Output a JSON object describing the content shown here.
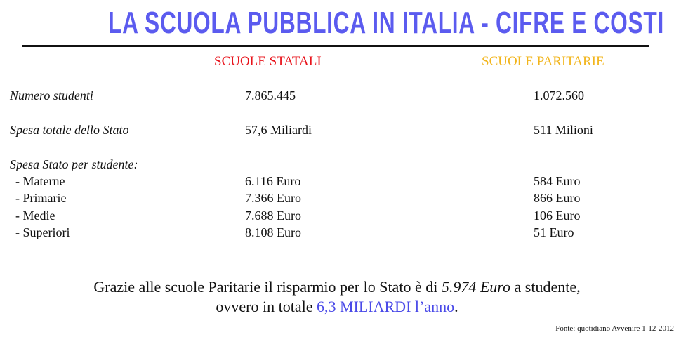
{
  "title": "LA SCUOLA PUBBLICA IN ITALIA  -  CIFRE E COSTI",
  "colors": {
    "title": "#5b5bef",
    "statali": "#e8141c",
    "paritarie": "#f2b51c",
    "highlight": "#4a4ae8"
  },
  "columns": {
    "statali": "SCUOLE STATALI",
    "paritarie": "SCUOLE PARITARIE"
  },
  "rows": [
    {
      "label": "Numero studenti",
      "statali": "7.865.445",
      "paritarie": "1.072.560"
    },
    {
      "label": "Spesa totale dello Stato",
      "statali": "57,6 Miliardi",
      "paritarie": "511 Milioni"
    }
  ],
  "per_student": {
    "label": "Spesa Stato per studente:",
    "items": [
      {
        "label": "- Materne",
        "statali": "6.116 Euro",
        "paritarie": "584 Euro"
      },
      {
        "label": "- Primarie",
        "statali": "7.366 Euro",
        "paritarie": "866 Euro"
      },
      {
        "label": "- Medie",
        "statali": "7.688 Euro",
        "paritarie": "106 Euro"
      },
      {
        "label": "- Superiori",
        "statali": "8.108 Euro",
        "paritarie": "51 Euro"
      }
    ]
  },
  "conclusion": {
    "line1_a": "Grazie alle scuole Paritarie il risparmio per lo Stato è di ",
    "line1_em": "5.974 Euro",
    "line1_b": " a studente,",
    "line2_a": "ovvero in totale ",
    "line2_bold": "6,3 MILIARDI",
    "line2_b": " l’anno",
    "line2_end": "."
  },
  "source": "Fonte: quotidiano Avvenire 1-12-2012"
}
